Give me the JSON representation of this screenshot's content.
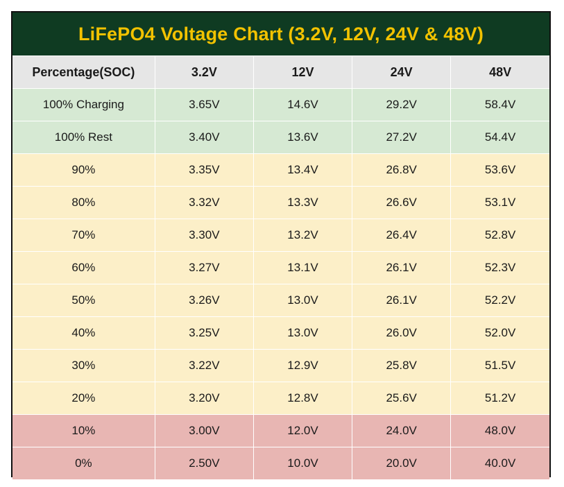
{
  "title": "LiFePO4 Voltage Chart (3.2V, 12V, 24V & 48V)",
  "colors": {
    "title_background": "#0f3b22",
    "title_text": "#f2c200",
    "header_background": "#e6e6e6",
    "full_band": "#d6e9d3",
    "mid_band": "#fcefc8",
    "low_band": "#e8b6b3"
  },
  "chart_data": {
    "type": "table",
    "title": "LiFePO4 Voltage Chart (3.2V, 12V, 24V & 48V)",
    "columns": [
      "Percentage(SOC)",
      "3.2V",
      "12V",
      "24V",
      "48V"
    ],
    "rows": [
      {
        "band": "green",
        "cells": [
          "100% Charging",
          "3.65V",
          "14.6V",
          "29.2V",
          "58.4V"
        ]
      },
      {
        "band": "green",
        "cells": [
          "100% Rest",
          "3.40V",
          "13.6V",
          "27.2V",
          "54.4V"
        ]
      },
      {
        "band": "yellow",
        "cells": [
          "90%",
          "3.35V",
          "13.4V",
          "26.8V",
          "53.6V"
        ]
      },
      {
        "band": "yellow",
        "cells": [
          "80%",
          "3.32V",
          "13.3V",
          "26.6V",
          "53.1V"
        ]
      },
      {
        "band": "yellow",
        "cells": [
          "70%",
          "3.30V",
          "13.2V",
          "26.4V",
          "52.8V"
        ]
      },
      {
        "band": "yellow",
        "cells": [
          "60%",
          "3.27V",
          "13.1V",
          "26.1V",
          "52.3V"
        ]
      },
      {
        "band": "yellow",
        "cells": [
          "50%",
          "3.26V",
          "13.0V",
          "26.1V",
          "52.2V"
        ]
      },
      {
        "band": "yellow",
        "cells": [
          "40%",
          "3.25V",
          "13.0V",
          "26.0V",
          "52.0V"
        ]
      },
      {
        "band": "yellow",
        "cells": [
          "30%",
          "3.22V",
          "12.9V",
          "25.8V",
          "51.5V"
        ]
      },
      {
        "band": "yellow",
        "cells": [
          "20%",
          "3.20V",
          "12.8V",
          "25.6V",
          "51.2V"
        ]
      },
      {
        "band": "red",
        "cells": [
          "10%",
          "3.00V",
          "12.0V",
          "24.0V",
          "48.0V"
        ]
      },
      {
        "band": "red",
        "cells": [
          "0%",
          "2.50V",
          "10.0V",
          "20.0V",
          "40.0V"
        ]
      }
    ]
  }
}
